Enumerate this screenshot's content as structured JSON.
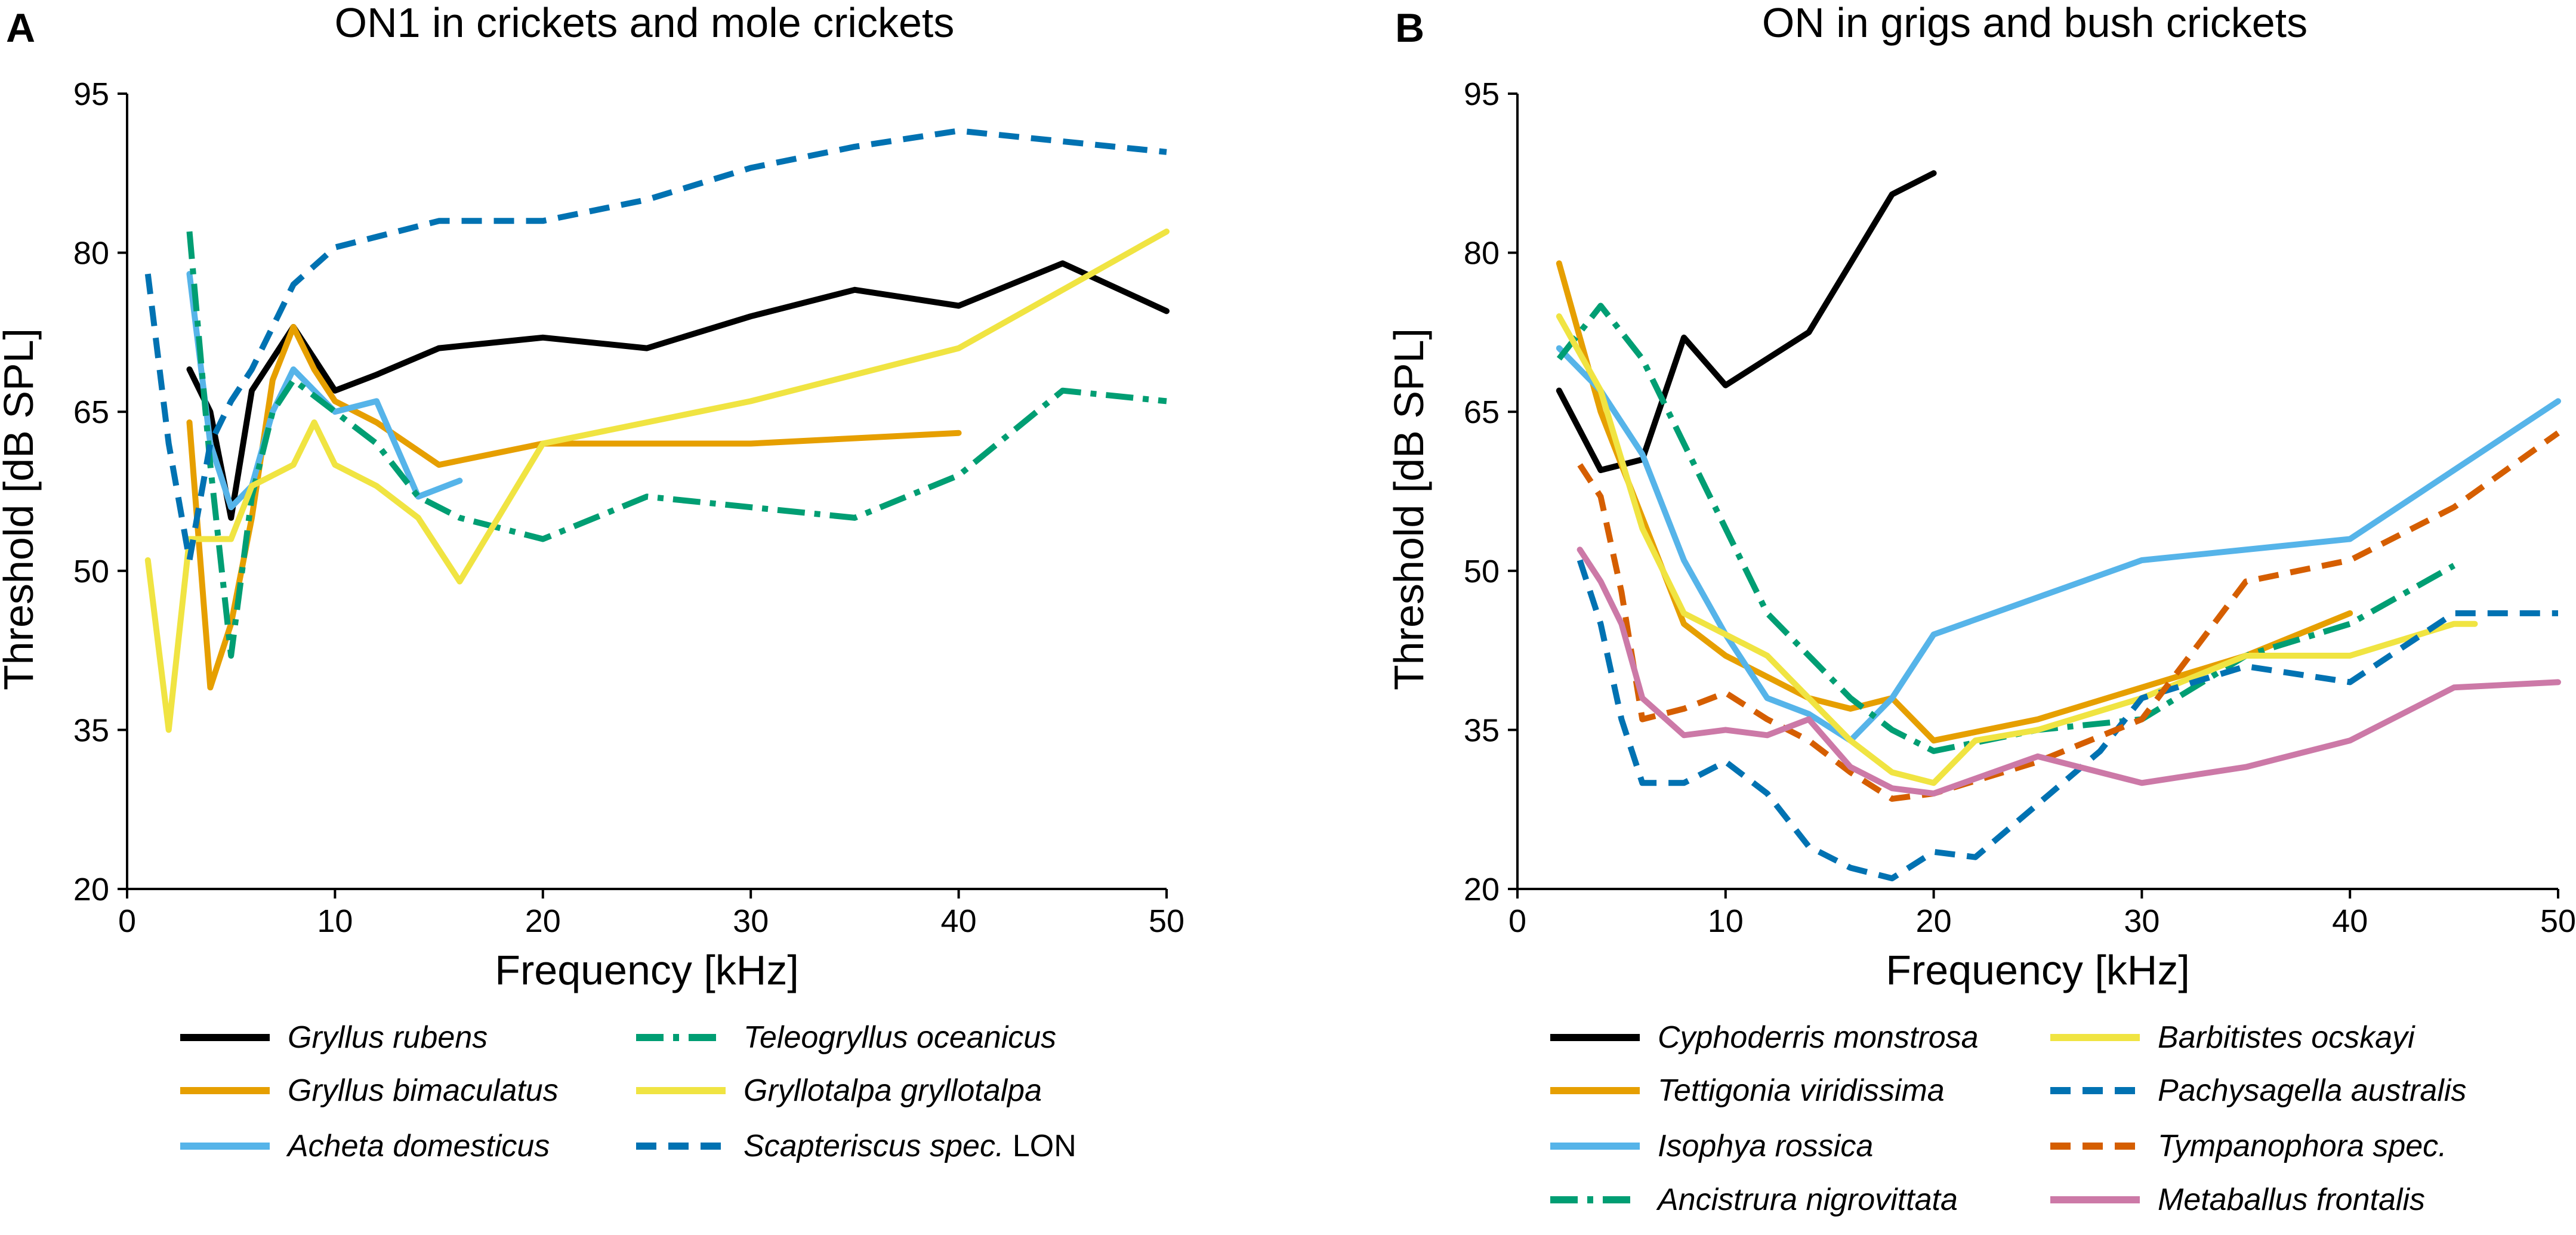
{
  "chart_data": [
    {
      "panel": "A",
      "type": "line",
      "title": "ON1 in crickets and mole crickets",
      "xlabel": "Frequency [kHz]",
      "ylabel": "Threshold [dB SPL]",
      "xlim": [
        0,
        50
      ],
      "ylim": [
        20,
        95
      ],
      "xticks": [
        0,
        10,
        20,
        30,
        40,
        50
      ],
      "yticks": [
        20,
        35,
        50,
        65,
        80,
        95
      ],
      "grid": false,
      "legend_position": "bottom",
      "series": [
        {
          "name": "Gryllus rubens",
          "suffix": "",
          "color": "#000000",
          "style": "solid",
          "x": [
            3,
            4,
            5,
            6,
            7,
            8,
            9,
            10,
            12,
            15,
            20,
            25,
            30,
            35,
            40,
            45,
            50
          ],
          "y": [
            69,
            65,
            55,
            67,
            70,
            73,
            70,
            67,
            68.5,
            71,
            72,
            71,
            74,
            76.5,
            75,
            79,
            74.5
          ]
        },
        {
          "name": "Gryllus bimaculatus",
          "suffix": "",
          "color": "#E69F00",
          "style": "solid",
          "x": [
            3,
            4,
            5,
            6,
            7,
            8,
            9,
            10,
            12,
            15,
            20,
            30,
            40
          ],
          "y": [
            64,
            39,
            45,
            55,
            68,
            73,
            69,
            66,
            64,
            60,
            62,
            62,
            63
          ]
        },
        {
          "name": "Acheta domesticus",
          "suffix": "",
          "color": "#56B4E9",
          "style": "solid",
          "x": [
            3,
            4,
            5,
            6,
            7,
            8,
            9,
            10,
            12,
            14,
            16
          ],
          "y": [
            78,
            62,
            56,
            58,
            65,
            69,
            67,
            65,
            66,
            57,
            58.5
          ]
        },
        {
          "name": "Teleogryllus oceanicus",
          "suffix": "",
          "color": "#009E73",
          "style": "dashdot",
          "x": [
            3,
            4,
            5,
            6,
            7,
            8,
            10,
            12,
            14,
            16,
            20,
            25,
            30,
            35,
            40,
            45,
            50
          ],
          "y": [
            82,
            60,
            42,
            57,
            65,
            68,
            65,
            62,
            57,
            55,
            53,
            57,
            56,
            55,
            59,
            67,
            66
          ]
        },
        {
          "name": "Gryllotalpa gryllotalpa",
          "suffix": "",
          "color": "#F0E442",
          "style": "solid",
          "x": [
            1,
            2,
            3,
            4,
            5,
            6,
            7,
            8,
            9,
            10,
            12,
            14,
            16,
            20,
            30,
            40,
            50
          ],
          "y": [
            51,
            35,
            53,
            53,
            53,
            58,
            59,
            60,
            64,
            60,
            58,
            55,
            49,
            62,
            66,
            71,
            82
          ]
        },
        {
          "name": "Scapteriscus spec.",
          "suffix": "LON",
          "color": "#0072B2",
          "style": "dashed",
          "x": [
            1,
            2,
            3,
            4,
            5,
            6,
            7,
            8,
            10,
            15,
            20,
            25,
            30,
            35,
            40,
            45,
            50
          ],
          "y": [
            78,
            62,
            51,
            62,
            66,
            69,
            73,
            77,
            80.5,
            83,
            83,
            85,
            88,
            90,
            91.5,
            90.5,
            89.5
          ]
        }
      ]
    },
    {
      "panel": "B",
      "type": "line",
      "title": "ON in grigs and bush crickets",
      "xlabel": "Frequency [kHz]",
      "ylabel": "Threshold [dB SPL]",
      "xlim": [
        0,
        50
      ],
      "ylim": [
        20,
        95
      ],
      "xticks": [
        0,
        10,
        20,
        30,
        40,
        50
      ],
      "yticks": [
        20,
        35,
        50,
        65,
        80,
        95
      ],
      "grid": false,
      "legend_position": "bottom",
      "series": [
        {
          "name": "Cyphoderris monstrosa",
          "suffix": "",
          "color": "#000000",
          "style": "solid",
          "x": [
            2,
            4,
            5,
            6,
            8,
            10,
            12,
            14,
            16,
            18,
            20
          ],
          "y": [
            67,
            59.5,
            60,
            60.5,
            72,
            67.5,
            70,
            72.5,
            79,
            85.5,
            87.5
          ]
        },
        {
          "name": "Tettigonia viridissima",
          "suffix": "",
          "color": "#E69F00",
          "style": "solid",
          "x": [
            2,
            4,
            6,
            8,
            10,
            12,
            14,
            16,
            18,
            20,
            25,
            30,
            35,
            40
          ],
          "y": [
            79,
            65,
            55,
            45,
            42,
            40,
            38,
            37,
            38,
            34,
            36,
            39,
            42,
            46
          ]
        },
        {
          "name": "Isophya rossica",
          "suffix": "",
          "color": "#56B4E9",
          "style": "solid",
          "x": [
            2,
            4,
            6,
            8,
            10,
            12,
            14,
            16,
            18,
            20,
            30,
            40,
            50
          ],
          "y": [
            71,
            67,
            61,
            51,
            44,
            38,
            36.5,
            34,
            38,
            44,
            51,
            53,
            66
          ]
        },
        {
          "name": "Ancistrura nigrovittata",
          "suffix": "",
          "color": "#009E73",
          "style": "dashdot",
          "x": [
            2,
            4,
            6,
            8,
            10,
            12,
            14,
            16,
            18,
            20,
            25,
            30,
            35,
            40,
            45
          ],
          "y": [
            70,
            75,
            70,
            62,
            54,
            46,
            42,
            38,
            35,
            33,
            35,
            36,
            42,
            45,
            50.5
          ]
        },
        {
          "name": "Barbitistes ocskayi",
          "suffix": "",
          "color": "#F0E442",
          "style": "solid",
          "x": [
            2,
            4,
            6,
            8,
            10,
            12,
            14,
            16,
            18,
            20,
            22,
            25,
            30,
            35,
            40,
            45,
            46
          ],
          "y": [
            74,
            67,
            54,
            46,
            44,
            42,
            38,
            34,
            31,
            30,
            34,
            35,
            38,
            42,
            42,
            45,
            45
          ]
        },
        {
          "name": "Pachysagella australis",
          "suffix": "",
          "color": "#0072B2",
          "style": "dashed",
          "x": [
            3,
            4,
            5,
            6,
            8,
            10,
            12,
            14,
            16,
            18,
            20,
            22,
            25,
            28,
            30,
            35,
            40,
            45,
            50
          ],
          "y": [
            51,
            45,
            36,
            30,
            30,
            32,
            29,
            24,
            22,
            21,
            23.5,
            23,
            28,
            33,
            38,
            41,
            39.5,
            46,
            46
          ]
        },
        {
          "name": "Tympanophora spec.",
          "suffix": "",
          "color": "#D55E00",
          "style": "dashed",
          "x": [
            3,
            4,
            5,
            6,
            8,
            10,
            12,
            14,
            16,
            18,
            20,
            25,
            30,
            35,
            40,
            45,
            50
          ],
          "y": [
            60,
            57,
            48,
            36,
            37,
            38.5,
            36,
            34,
            31,
            28.5,
            29,
            32,
            36,
            49,
            51,
            56,
            63
          ]
        },
        {
          "name": "Metaballus frontalis",
          "suffix": "",
          "color": "#CC79A7",
          "style": "solid",
          "x": [
            3,
            4,
            5,
            6,
            8,
            10,
            12,
            14,
            16,
            18,
            20,
            25,
            30,
            35,
            40,
            45,
            50
          ],
          "y": [
            52,
            49,
            45,
            38,
            34.5,
            35,
            34.5,
            36,
            31.5,
            29.5,
            29,
            32.5,
            30,
            31.5,
            34,
            39,
            39.5
          ]
        }
      ]
    }
  ]
}
